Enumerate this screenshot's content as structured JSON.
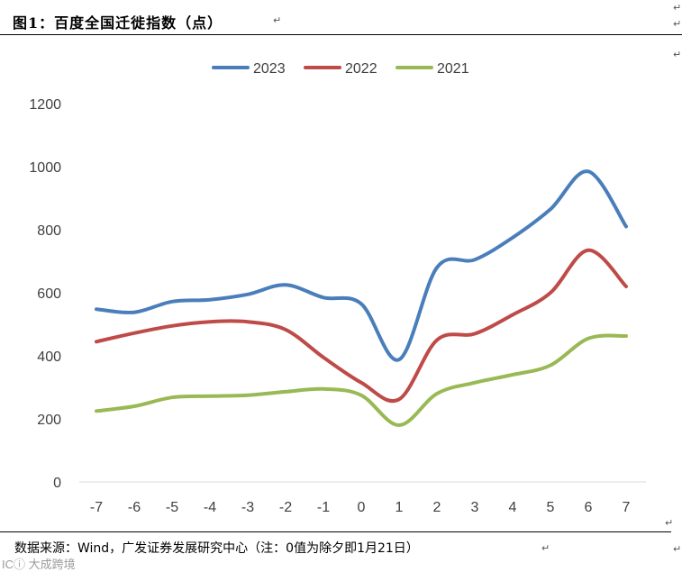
{
  "caption": "图1：百度全国迁徙指数（点）",
  "source": "数据来源：Wind，广发证券发展研究中心（注：0值为除夕即1月21日）",
  "paragraph_mark": "↵",
  "watermark": "ICⓘ 大成跨境",
  "chart_data": {
    "type": "line",
    "title": "",
    "xlabel": "",
    "ylabel": "",
    "x": [
      -7,
      -6,
      -5,
      -4,
      -3,
      -2,
      -1,
      0,
      1,
      2,
      3,
      4,
      5,
      6,
      7
    ],
    "x_labels": [
      "-7",
      "-6",
      "-5",
      "-4",
      "-3",
      "-2",
      "-1",
      "0",
      "1",
      "2",
      "3",
      "4",
      "5",
      "6",
      "7"
    ],
    "ylim": [
      0,
      1200
    ],
    "yticks": [
      0,
      200,
      400,
      600,
      800,
      1000,
      1200
    ],
    "grid": false,
    "legend_position": "top-center",
    "series": [
      {
        "name": "2023",
        "color": "#4a7ebb",
        "values": [
          548,
          538,
          572,
          578,
          595,
          625,
          585,
          565,
          388,
          680,
          705,
          775,
          865,
          985,
          810
        ]
      },
      {
        "name": "2022",
        "color": "#be4b48",
        "values": [
          445,
          472,
          495,
          508,
          508,
          483,
          395,
          315,
          262,
          450,
          470,
          530,
          600,
          735,
          620
        ]
      },
      {
        "name": "2021",
        "color": "#98b954",
        "values": [
          225,
          240,
          268,
          272,
          275,
          286,
          295,
          275,
          180,
          280,
          315,
          340,
          370,
          455,
          463
        ]
      }
    ]
  }
}
